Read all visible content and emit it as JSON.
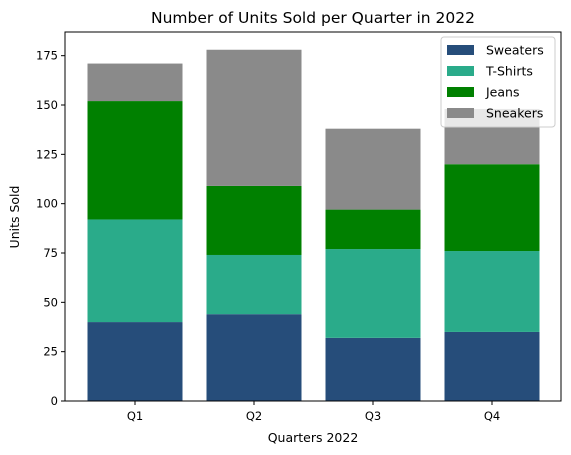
{
  "chart_data": {
    "type": "bar",
    "stacked": true,
    "title": "Number of Units Sold per Quarter in 2022",
    "xlabel": "Quarters 2022",
    "ylabel": "Units Sold",
    "categories": [
      "Q1",
      "Q2",
      "Q3",
      "Q4"
    ],
    "ylim": [
      0,
      187
    ],
    "yticks": [
      0,
      25,
      50,
      75,
      100,
      125,
      150,
      175
    ],
    "grid": false,
    "legend_position": "top-right",
    "series": [
      {
        "name": "Sweaters",
        "color": "#264d7a",
        "values": [
          40,
          44,
          32,
          35
        ]
      },
      {
        "name": "T-Shirts",
        "color": "#2aab8a",
        "values": [
          52,
          30,
          45,
          41
        ]
      },
      {
        "name": "Jeans",
        "color": "#008000",
        "values": [
          60,
          35,
          20,
          44
        ]
      },
      {
        "name": "Sneakers",
        "color": "#8a8a8a",
        "values": [
          19,
          69,
          41,
          28
        ]
      }
    ]
  }
}
